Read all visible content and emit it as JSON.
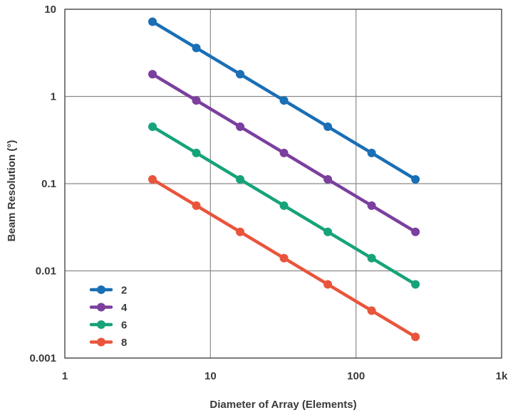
{
  "chart_data": {
    "type": "line",
    "title": "",
    "xlabel": "Diameter of Array (Elements)",
    "ylabel": "Beam Resolution (°)",
    "x_scale": "log",
    "y_scale": "log",
    "xlim": [
      1,
      1000
    ],
    "ylim": [
      0.001,
      10
    ],
    "grid": true,
    "legend_placement": "bottom-left",
    "x_ticks": [
      {
        "value": 1,
        "label": "1"
      },
      {
        "value": 10,
        "label": "10"
      },
      {
        "value": 100,
        "label": "100"
      },
      {
        "value": 1000,
        "label": "1k"
      }
    ],
    "y_ticks": [
      {
        "value": 10,
        "label": "10"
      },
      {
        "value": 1,
        "label": "1"
      },
      {
        "value": 0.1,
        "label": "0.1"
      },
      {
        "value": 0.01,
        "label": "0.01"
      },
      {
        "value": 0.001,
        "label": "0.001"
      }
    ],
    "x": [
      4,
      8,
      16,
      32,
      64,
      128,
      256
    ],
    "series": [
      {
        "name": "2",
        "color": "#1a6fb5",
        "values": [
          7.2,
          3.6,
          1.8,
          0.9,
          0.45,
          0.225,
          0.112
        ]
      },
      {
        "name": "4",
        "color": "#7b3f9e",
        "values": [
          1.8,
          0.9,
          0.45,
          0.225,
          0.112,
          0.056,
          0.028
        ]
      },
      {
        "name": "6",
        "color": "#17a37a",
        "values": [
          0.45,
          0.225,
          0.112,
          0.056,
          0.028,
          0.014,
          0.007
        ]
      },
      {
        "name": "8",
        "color": "#e9553b",
        "values": [
          0.112,
          0.056,
          0.028,
          0.014,
          0.007,
          0.0035,
          0.00175
        ]
      }
    ]
  }
}
